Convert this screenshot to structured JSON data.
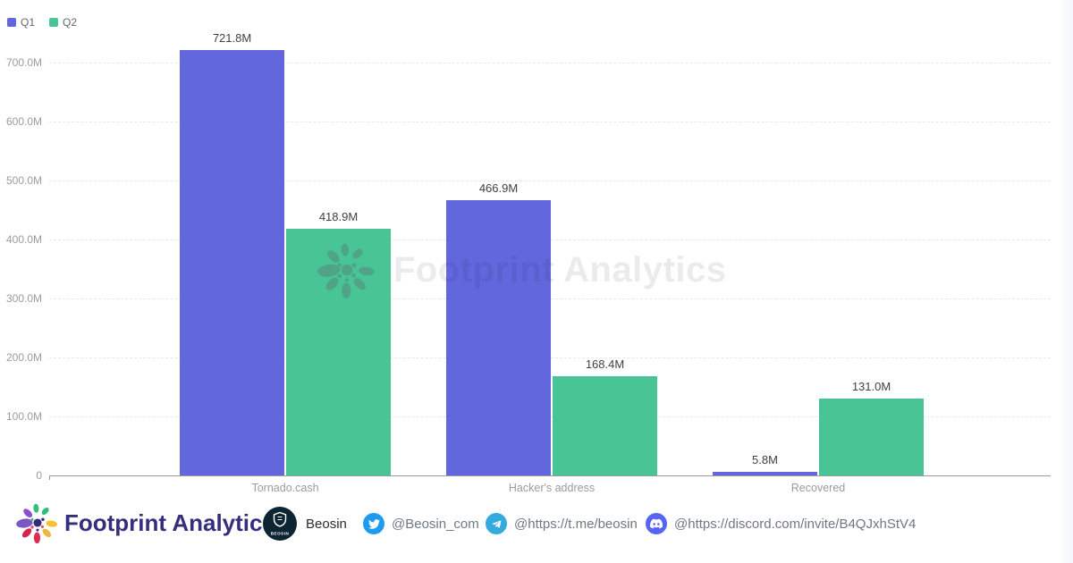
{
  "chart_data": {
    "type": "bar",
    "title": "",
    "categories": [
      "Tornado.cash",
      "Hacker's address",
      "Recovered"
    ],
    "series": [
      {
        "name": "Q1",
        "color": "#6267DD",
        "values": [
          721.8,
          466.9,
          5.8
        ],
        "labels": [
          "721.8M",
          "466.9M",
          "5.8M"
        ]
      },
      {
        "name": "Q2",
        "color": "#49C495",
        "values": [
          418.9,
          168.4,
          131.0
        ],
        "labels": [
          "418.9M",
          "168.4M",
          "131.0M"
        ]
      }
    ],
    "unit": "M",
    "y_ticks": [
      "700.0M",
      "600.0M",
      "500.0M",
      "400.0M",
      "300.0M",
      "200.0M",
      "100.0M",
      "0"
    ],
    "ylim": [
      0,
      760
    ],
    "grid": "horizontal-dashed",
    "legend_position": "top-left"
  },
  "watermark": {
    "text": "Footprint Analytics"
  },
  "footer": {
    "brand": "Footprint Analytics",
    "partner": {
      "name": "Beosin",
      "logo_text": "BEOSIN"
    },
    "socials": [
      {
        "network": "twitter",
        "handle": "@Beosin_com",
        "color": "#1D9BF0"
      },
      {
        "network": "telegram",
        "handle": "@https://t.me/beosin",
        "color": "#34AADF"
      },
      {
        "network": "discord",
        "handle": "@https://discord.com/invite/B4QJxhStV4",
        "color": "#5865F2"
      }
    ]
  },
  "colors": {
    "q1": "#6267DD",
    "q2": "#49C495",
    "brand_text": "#332F7D",
    "axis": "#9b9b9b"
  }
}
